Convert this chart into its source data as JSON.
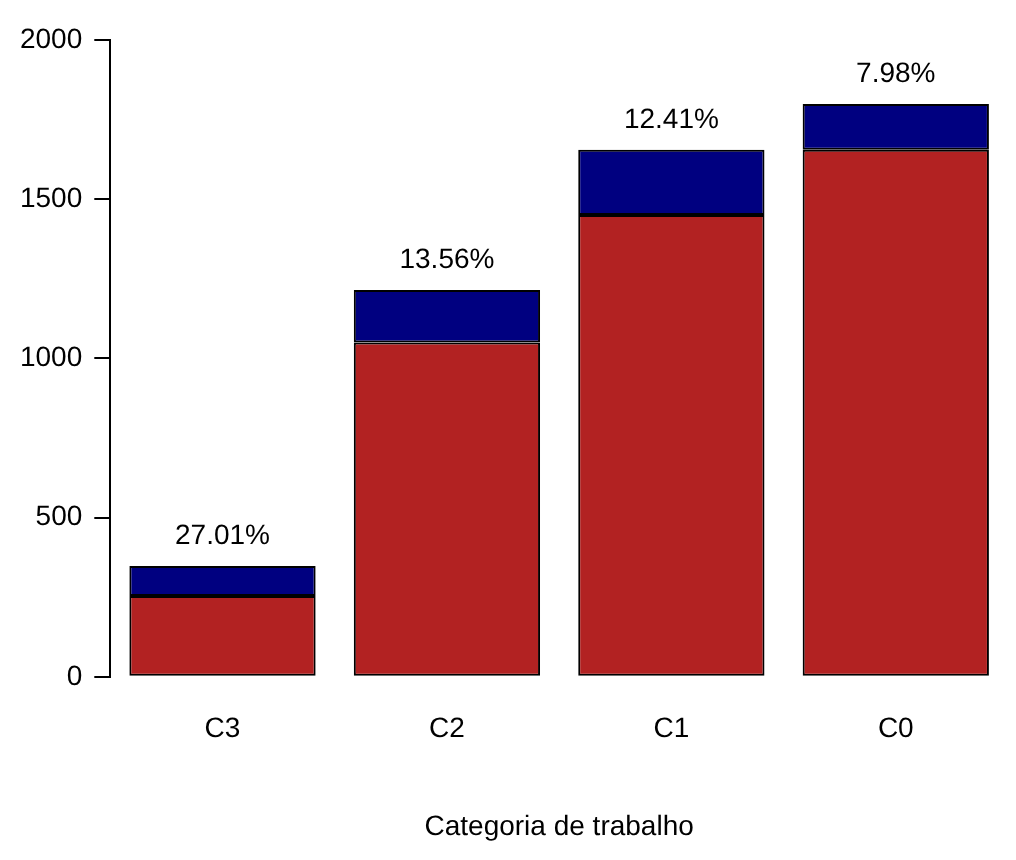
{
  "chart_data": {
    "type": "bar",
    "stacked": true,
    "xlabel": "Categoria de trabalho",
    "categories": [
      "C3",
      "C2",
      "C1",
      "C0"
    ],
    "series": [
      {
        "color": "#b22222",
        "values": [
          254,
          1050,
          1450,
          1655
        ]
      },
      {
        "color": "#000080",
        "values": [
          94,
          165,
          205,
          144
        ]
      }
    ],
    "ylim": [
      0,
      2000
    ],
    "yticks": [
      0,
      500,
      1000,
      1500,
      2000
    ],
    "grid": false,
    "legend": false,
    "annotations": [
      {
        "text": "27.01%",
        "x": "C3",
        "y": 348
      },
      {
        "text": "13.56%",
        "x": "C2",
        "y": 1215
      },
      {
        "text": "12.41%",
        "x": "C1",
        "y": 1655
      },
      {
        "text": "7.98%",
        "x": "C0",
        "y": 1799
      }
    ]
  }
}
